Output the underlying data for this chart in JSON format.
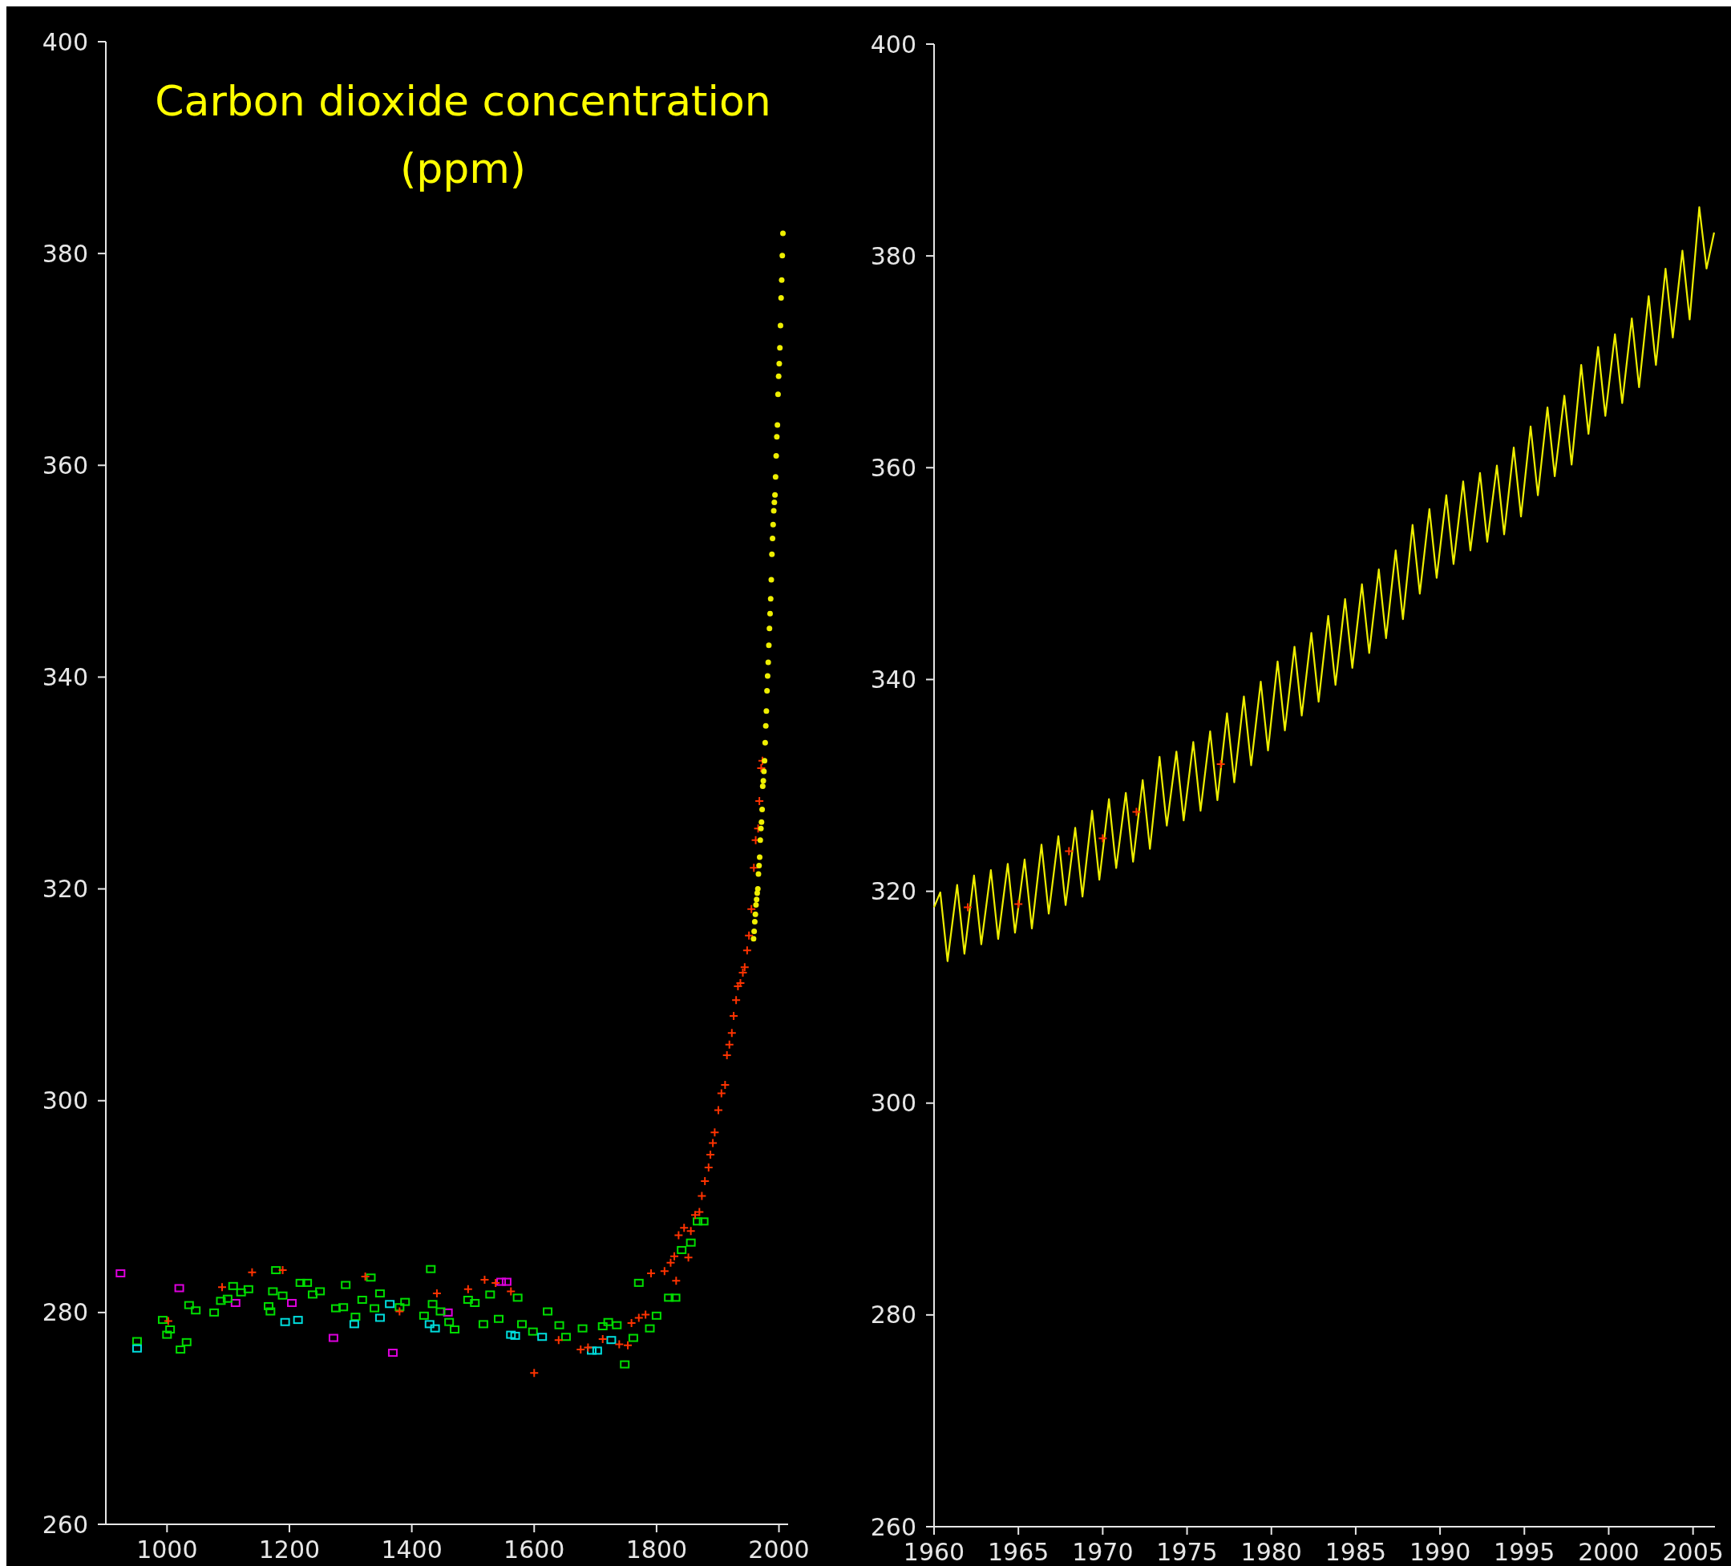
{
  "chart_data": [
    {
      "type": "scatter",
      "title": "Carbon dioxide concentration (ppm)",
      "xlim": [
        900,
        2015
      ],
      "xticks": [
        1000,
        1200,
        1400,
        1600,
        1800,
        2000
      ],
      "ylim": [
        260,
        400
      ],
      "yticks": [
        260,
        280,
        300,
        320,
        340,
        360,
        380,
        400
      ],
      "grid": false,
      "series": [
        {
          "color": "#dd00dd",
          "marker": "square",
          "x": [
            924,
            1020,
            1112,
            1204,
            1272,
            1369,
            1459,
            1546,
            1555
          ],
          "values": [
            283.7,
            282.3,
            280.9,
            280.9,
            277.6,
            276.2,
            280.0,
            282.9,
            282.9
          ]
        },
        {
          "color": "#00dd00",
          "marker": "square",
          "x": [
            951,
            993,
            1000,
            1005,
            1022,
            1032,
            1036,
            1047,
            1077,
            1088,
            1099,
            1108,
            1121,
            1133,
            1178,
            1173,
            1166,
            1169,
            1189,
            1218,
            1229,
            1238,
            1250,
            1276,
            1292,
            1288,
            1308,
            1319,
            1333,
            1339,
            1348,
            1380,
            1389,
            1420,
            1431,
            1434,
            1447,
            1461,
            1470,
            1492,
            1503,
            1517,
            1528,
            1542,
            1573,
            1580,
            1598,
            1622,
            1641,
            1652,
            1679,
            1712,
            1721,
            1735,
            1748,
            1762,
            1771,
            1789,
            1800,
            1820,
            1831,
            1841,
            1856,
            1867,
            1877
          ],
          "values": [
            277.3,
            279.3,
            277.9,
            278.4,
            276.5,
            277.2,
            280.7,
            280.2,
            280.0,
            281.1,
            281.3,
            282.5,
            281.9,
            282.2,
            284.0,
            282.0,
            280.6,
            280.1,
            281.6,
            282.8,
            282.8,
            281.7,
            282.0,
            280.4,
            282.6,
            280.5,
            279.6,
            281.2,
            283.3,
            280.4,
            281.8,
            280.5,
            281.0,
            279.7,
            284.1,
            280.8,
            280.1,
            279.1,
            278.4,
            281.2,
            280.9,
            278.9,
            281.7,
            279.4,
            281.4,
            278.9,
            278.2,
            280.1,
            278.8,
            277.7,
            278.5,
            278.7,
            279.1,
            278.8,
            275.1,
            277.6,
            282.8,
            278.5,
            279.7,
            281.4,
            281.4,
            285.9,
            286.6,
            288.6,
            288.6
          ]
        },
        {
          "color": "#00dddd",
          "marker": "square",
          "x": [
            951,
            1193,
            1214,
            1306,
            1348,
            1364,
            1429,
            1438,
            1562,
            1569,
            1613,
            1694,
            1703,
            1726
          ],
          "values": [
            276.6,
            279.1,
            279.3,
            278.9,
            279.5,
            280.8,
            278.9,
            278.5,
            277.9,
            277.8,
            277.7,
            276.4,
            276.4,
            277.4
          ]
        },
        {
          "color": "#ff3300",
          "marker": "cross",
          "x": [
            1002,
            1090,
            1139,
            1189,
            1324,
            1380,
            1441,
            1492,
            1519,
            1537,
            1562,
            1600,
            1640,
            1676,
            1688,
            1712,
            1739,
            1753,
            1759,
            1771,
            1782,
            1791,
            1813,
            1823,
            1829,
            1832,
            1836,
            1845,
            1852,
            1856,
            1863,
            1870,
            1874,
            1879,
            1885,
            1888,
            1892,
            1895,
            1901,
            1906,
            1912,
            1915,
            1919,
            1923,
            1926,
            1930,
            1933,
            1937,
            1941,
            1944,
            1948,
            1951,
            1955,
            1959,
            1962,
            1966,
            1968,
            1971,
            1973
          ],
          "values": [
            279.2,
            282.4,
            283.8,
            284.0,
            283.4,
            280.1,
            281.8,
            282.2,
            283.1,
            282.8,
            282.0,
            274.3,
            277.4,
            276.5,
            276.7,
            277.5,
            277.0,
            276.9,
            279.0,
            279.5,
            279.8,
            283.7,
            283.9,
            284.7,
            285.3,
            283.0,
            287.3,
            288.0,
            285.2,
            287.7,
            289.2,
            289.5,
            291.0,
            292.4,
            293.7,
            294.9,
            296.0,
            297.0,
            299.1,
            300.7,
            301.5,
            304.3,
            305.3,
            306.4,
            308.0,
            309.5,
            310.8,
            311.1,
            312.1,
            312.6,
            314.2,
            315.6,
            318.1,
            322.0,
            324.6,
            325.7,
            328.3,
            331.4,
            332.1
          ]
        },
        {
          "color": "#eeee00",
          "marker": "circle",
          "x": [
            1958.5,
            1959.5,
            1960.5,
            1961.5,
            1962.5,
            1963.5,
            1964.5,
            1965.5,
            1966.5,
            1967.5,
            1968.5,
            1969.5,
            1970.5,
            1971.5,
            1972.5,
            1973.5,
            1974.5,
            1975.5,
            1976.5,
            1977.5,
            1978.5,
            1979.5,
            1980.5,
            1981.5,
            1982.5,
            1983.5,
            1984.5,
            1985.5,
            1986.5,
            1987.5,
            1988.5,
            1989.5,
            1990.5,
            1991.5,
            1992.5,
            1993.5,
            1994.5,
            1995.5,
            1996.5,
            1997.5,
            1998.5,
            1999.5,
            2000.5,
            2001.5,
            2002.5,
            2003.5,
            2004.5,
            2005.5,
            2006.5
          ],
          "values": [
            315.3,
            316.0,
            316.9,
            317.6,
            318.5,
            319.0,
            319.6,
            320.0,
            321.4,
            322.2,
            323.0,
            324.6,
            325.7,
            326.3,
            327.5,
            329.7,
            330.2,
            331.1,
            332.1,
            333.8,
            335.4,
            336.8,
            338.7,
            340.1,
            341.4,
            343.0,
            344.6,
            346.0,
            347.4,
            349.2,
            351.6,
            353.1,
            354.4,
            355.7,
            356.5,
            357.2,
            358.9,
            360.9,
            362.7,
            363.8,
            366.7,
            368.4,
            369.6,
            371.1,
            373.2,
            375.8,
            377.5,
            379.8,
            381.9
          ]
        }
      ]
    },
    {
      "type": "line",
      "xlim": [
        1960,
        2006.3
      ],
      "xticks": [
        1960,
        1965,
        1970,
        1975,
        1980,
        1985,
        1990,
        1995,
        2000,
        2005
      ],
      "ylim": [
        260,
        400
      ],
      "yticks": [
        260,
        280,
        300,
        320,
        340,
        360,
        380,
        400
      ],
      "grid": false,
      "line_style": "solid",
      "series": [
        {
          "color": "#eeee00",
          "x": [
            1960.0,
            1960.37,
            1960.8,
            1961.37,
            1961.8,
            1962.37,
            1962.8,
            1963.37,
            1963.8,
            1964.37,
            1964.8,
            1965.37,
            1965.8,
            1966.37,
            1966.8,
            1967.37,
            1967.8,
            1968.37,
            1968.8,
            1969.37,
            1969.8,
            1970.37,
            1970.8,
            1971.37,
            1971.8,
            1972.37,
            1972.8,
            1973.37,
            1973.8,
            1974.37,
            1974.8,
            1975.37,
            1975.8,
            1976.37,
            1976.8,
            1977.37,
            1977.8,
            1978.37,
            1978.8,
            1979.37,
            1979.8,
            1980.37,
            1980.8,
            1981.37,
            1981.8,
            1982.37,
            1982.8,
            1983.37,
            1983.8,
            1984.37,
            1984.8,
            1985.37,
            1985.8,
            1986.37,
            1986.8,
            1987.37,
            1987.8,
            1988.37,
            1988.8,
            1989.37,
            1989.8,
            1990.37,
            1990.8,
            1991.37,
            1991.8,
            1992.37,
            1992.8,
            1993.37,
            1993.8,
            1994.37,
            1994.8,
            1995.37,
            1995.8,
            1996.37,
            1996.8,
            1997.37,
            1997.8,
            1998.37,
            1998.8,
            1999.37,
            1999.8,
            2000.37,
            2000.8,
            2001.37,
            2001.8,
            2002.37,
            2002.8,
            2003.37,
            2003.8,
            2004.37,
            2004.8,
            2005.37,
            2005.8,
            2006.25
          ],
          "values": [
            318.5,
            319.9,
            313.4,
            320.6,
            314.1,
            321.5,
            315.0,
            322.0,
            315.5,
            322.6,
            316.1,
            323.0,
            316.5,
            324.4,
            317.9,
            325.2,
            318.7,
            326.0,
            319.5,
            327.6,
            321.1,
            328.7,
            322.2,
            329.3,
            322.8,
            330.5,
            324.0,
            332.7,
            326.2,
            333.2,
            326.7,
            334.1,
            327.6,
            335.1,
            328.6,
            336.8,
            330.3,
            338.4,
            331.9,
            339.8,
            333.3,
            341.7,
            335.2,
            343.1,
            336.6,
            344.4,
            337.9,
            346.0,
            339.5,
            347.6,
            341.1,
            349.0,
            342.5,
            350.4,
            343.9,
            352.2,
            345.7,
            354.6,
            348.1,
            356.1,
            349.6,
            357.4,
            350.9,
            358.7,
            352.2,
            359.5,
            353.0,
            360.2,
            353.7,
            361.9,
            355.4,
            363.9,
            357.4,
            365.7,
            359.2,
            366.8,
            360.3,
            369.7,
            363.2,
            371.4,
            364.9,
            372.6,
            366.1,
            374.1,
            367.6,
            376.2,
            369.7,
            378.8,
            372.3,
            380.5,
            374.0,
            384.6,
            378.8,
            382.2
          ]
        },
        {
          "type": "scatter",
          "color": "#ff3300",
          "marker": "cross",
          "x": [
            1962,
            1965,
            1968,
            1970,
            1972,
            1977
          ],
          "values": [
            318.5,
            318.8,
            323.8,
            325.0,
            327.5,
            332.0
          ]
        }
      ]
    }
  ]
}
